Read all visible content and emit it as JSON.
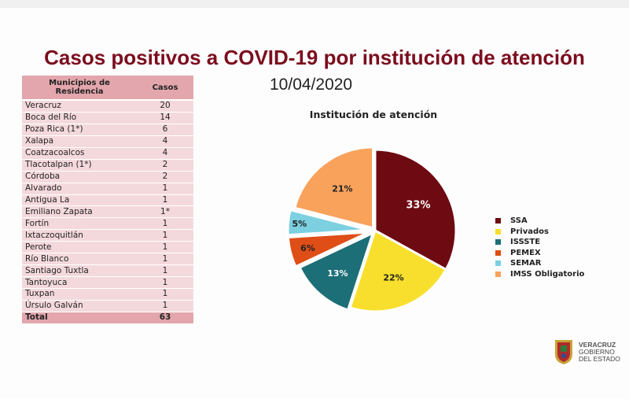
{
  "title": "Casos positivos a COVID-19  por institución de atención",
  "date": "10/04/2020",
  "table": {
    "headers": [
      "Municipios de Residencia",
      "Casos"
    ],
    "rows": [
      {
        "municipio": "Veracruz",
        "casos": "20"
      },
      {
        "municipio": "Boca del Río",
        "casos": "14"
      },
      {
        "municipio": "Poza Rica (1*)",
        "casos": "6"
      },
      {
        "municipio": "Xalapa",
        "casos": "4"
      },
      {
        "municipio": "Coatzacoalcos",
        "casos": "4"
      },
      {
        "municipio": "Tlacotalpan (1*)",
        "casos": "2"
      },
      {
        "municipio": "Córdoba",
        "casos": "2"
      },
      {
        "municipio": "Alvarado",
        "casos": "1"
      },
      {
        "municipio": "Antigua La",
        "casos": "1"
      },
      {
        "municipio": "Emiliano Zapata",
        "casos": "1*"
      },
      {
        "municipio": "Fortín",
        "casos": "1"
      },
      {
        "municipio": "Ixtaczoquitlán",
        "casos": "1"
      },
      {
        "municipio": "Perote",
        "casos": "1"
      },
      {
        "municipio": "Río Blanco",
        "casos": "1"
      },
      {
        "municipio": "Santiago Tuxtla",
        "casos": "1"
      },
      {
        "municipio": "Tantoyuca",
        "casos": "1"
      },
      {
        "municipio": "Tuxpan",
        "casos": "1"
      },
      {
        "municipio": "Úrsulo Galván",
        "casos": "1"
      }
    ],
    "total_label": "Total",
    "total_value": "63"
  },
  "chart_data": {
    "type": "pie",
    "title": "Institución de atención",
    "categories": [
      "SSA",
      "Privados",
      "ISSSTE",
      "PEMEX",
      "SEMAR",
      "IMSS Obligatorio"
    ],
    "values": [
      33,
      22,
      13,
      6,
      5,
      21
    ],
    "labels": [
      "33%",
      "22%",
      "13%",
      "6%",
      "5%",
      "21%"
    ],
    "colors": [
      "#6e0a12",
      "#f8df2d",
      "#1c6e77",
      "#df4e16",
      "#7cd0e0",
      "#f8a25c"
    ],
    "legend": "right"
  },
  "logo": {
    "line1": "VERACRUZ",
    "line2": "GOBIERNO",
    "line3": "DEL ESTADO",
    "icon": "state-shield-icon"
  }
}
